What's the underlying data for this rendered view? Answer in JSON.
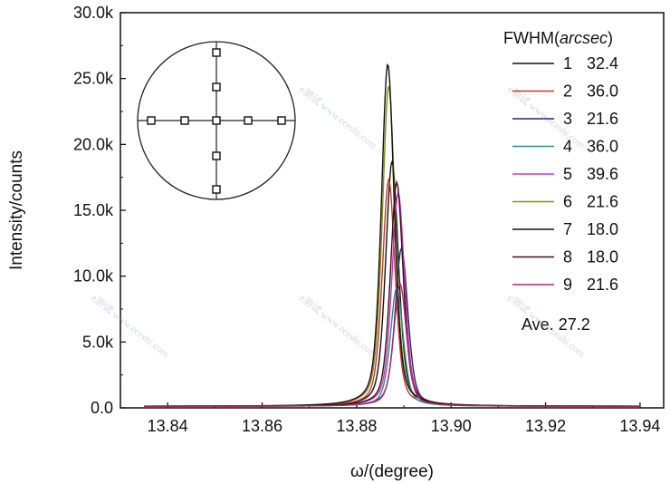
{
  "chart_data": {
    "type": "line",
    "xlabel": "ω/(degree)",
    "ylabel": "Intensity/counts",
    "xlim": [
      13.83,
      13.945
    ],
    "ylim": [
      0,
      30000
    ],
    "x_ticks": [
      "13.84",
      "13.86",
      "13.88",
      "13.90",
      "13.92",
      "13.94"
    ],
    "y_ticks": [
      "0.0",
      "5.0k",
      "10.0k",
      "15.0k",
      "20.0k",
      "25.0k",
      "30.0k"
    ],
    "legend": {
      "title_prefix": "FWHM(",
      "title_unit": "arcsec",
      "title_suffix": ")",
      "average": "Ave. 27.2",
      "placement": "right"
    },
    "series": [
      {
        "name": "1",
        "fwhm": "32.4",
        "color": "#111111",
        "peak_x": 13.8875,
        "peak_y": 18600,
        "values_note": ""
      },
      {
        "name": "2",
        "fwhm": "36.0",
        "color": "#c0392b",
        "peak_x": 13.8868,
        "peak_y": 17200
      },
      {
        "name": "3",
        "fwhm": "21.6",
        "color": "#1f2a6b",
        "peak_x": 13.8895,
        "peak_y": 12000
      },
      {
        "name": "4",
        "fwhm": "36.0",
        "color": "#2a8c8c",
        "peak_x": 13.8885,
        "peak_y": 9000
      },
      {
        "name": "5",
        "fwhm": "39.6",
        "color": "#d030c8",
        "peak_x": 13.8888,
        "peak_y": 16200
      },
      {
        "name": "6",
        "fwhm": "21.6",
        "color": "#8a8a1a",
        "peak_x": 13.8868,
        "peak_y": 24300
      },
      {
        "name": "7",
        "fwhm": "18.0",
        "color": "#111111",
        "peak_x": 13.8866,
        "peak_y": 26000
      },
      {
        "name": "8",
        "fwhm": "18.0",
        "color": "#3a1010",
        "peak_x": 13.8885,
        "peak_y": 17000
      },
      {
        "name": "9",
        "fwhm": "21.6",
        "color": "#b02a6a",
        "peak_x": 13.8892,
        "peak_y": 9300
      }
    ],
    "inset": {
      "shape": "circle",
      "marker_shape": "square",
      "marker_count": 9
    },
    "watermark": "e测试 www.eceshi.com"
  }
}
